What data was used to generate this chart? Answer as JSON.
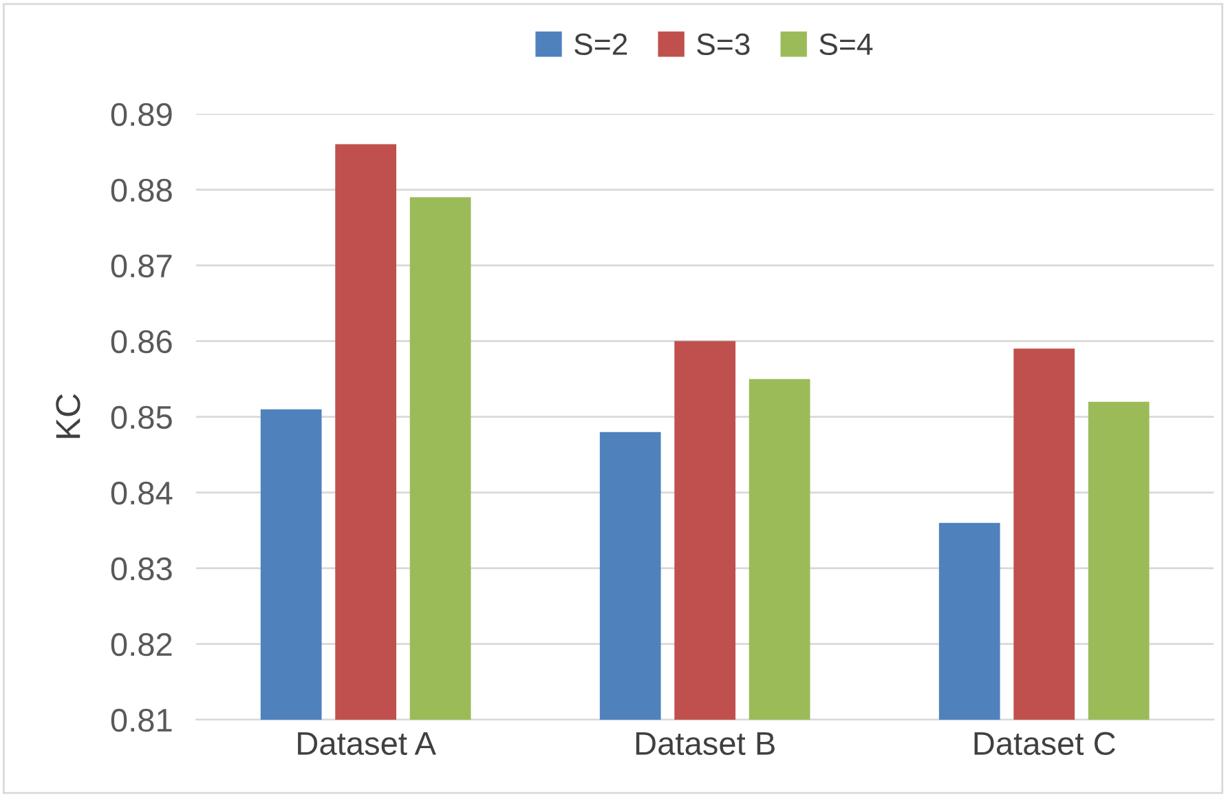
{
  "chart_data": {
    "type": "bar",
    "ylabel": "KC",
    "categories": [
      "Dataset A",
      "Dataset B",
      "Dataset C"
    ],
    "series": [
      {
        "name": "S=2",
        "color": "#4f81bd",
        "values": [
          0.851,
          0.848,
          0.836
        ]
      },
      {
        "name": "S=3",
        "color": "#c0504d",
        "values": [
          0.886,
          0.86,
          0.859
        ]
      },
      {
        "name": "S=4",
        "color": "#9bbb59",
        "values": [
          0.879,
          0.855,
          0.852
        ]
      }
    ],
    "ylim": [
      0.81,
      0.89
    ],
    "yticks": [
      0.81,
      0.82,
      0.83,
      0.84,
      0.85,
      0.86,
      0.87,
      0.88,
      0.89
    ],
    "grid": "y",
    "legend": "top"
  }
}
